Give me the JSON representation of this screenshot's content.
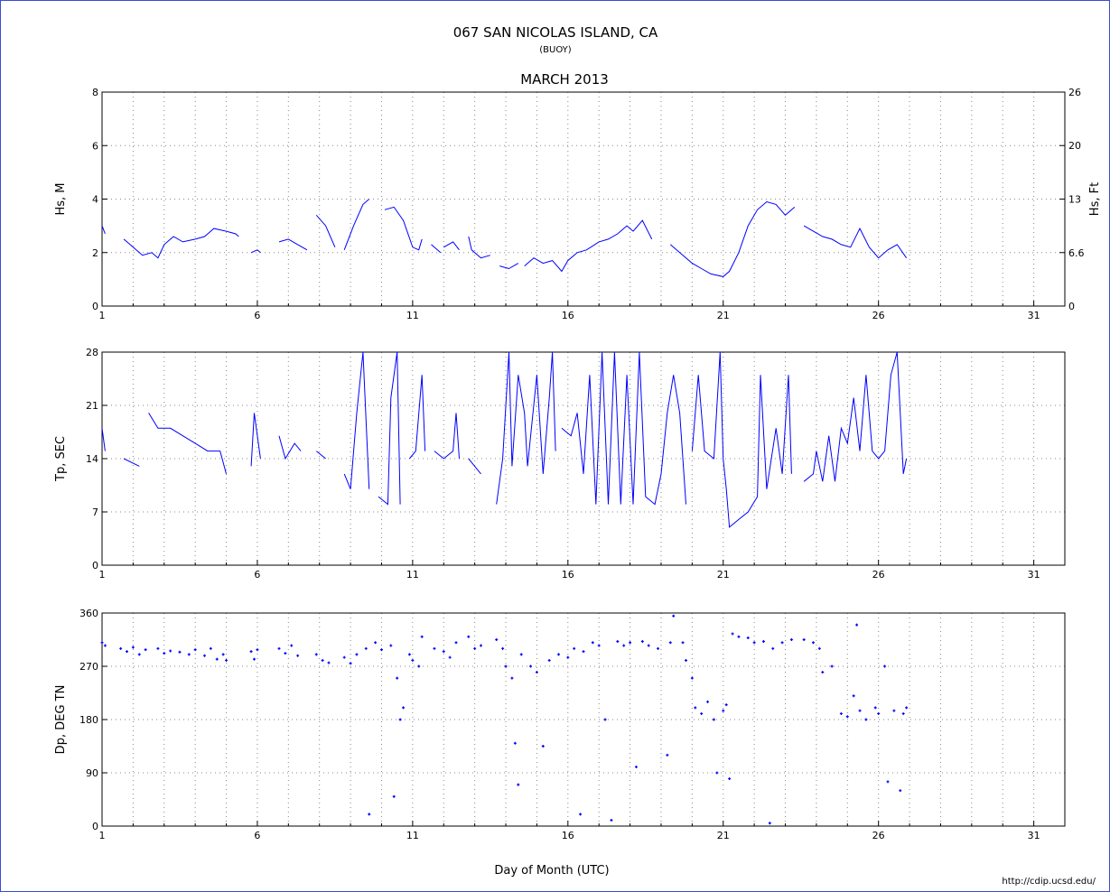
{
  "chart_data": [
    {
      "type": "line",
      "title": "067 SAN NICOLAS ISLAND, CA",
      "subtitle": "(BUOY)",
      "period": "MARCH 2013",
      "ylabel": "Hs, M",
      "y2label": "Hs, Ft",
      "color": "#0000ff",
      "grid": true,
      "xlim": [
        1,
        32
      ],
      "xticks": [
        1,
        6,
        11,
        16,
        21,
        26,
        31
      ],
      "xminorticks": [
        2,
        3,
        4,
        5,
        7,
        8,
        9,
        10,
        12,
        13,
        14,
        15,
        17,
        18,
        19,
        20,
        22,
        23,
        24,
        25,
        27,
        28,
        29,
        30
      ],
      "ylim": [
        0,
        8
      ],
      "yticks": [
        0,
        2,
        4,
        6,
        8
      ],
      "y2lim": [
        0,
        26.25
      ],
      "y2ticks": [
        0,
        {
          "value": 6.56,
          "label": "6.6"
        },
        {
          "value": 13.12,
          "label": "13"
        },
        {
          "value": 19.69,
          "label": "20"
        },
        {
          "value": 26.25,
          "label": "26"
        }
      ],
      "x": [
        1.0,
        1.1,
        1.4,
        1.7,
        2.0,
        2.3,
        2.6,
        2.8,
        3.0,
        3.3,
        3.6,
        4.0,
        4.3,
        4.6,
        5.0,
        5.3,
        5.4,
        5.6,
        5.8,
        6.0,
        6.1,
        6.4,
        6.7,
        7.0,
        7.3,
        7.6,
        7.75,
        7.9,
        8.2,
        8.5,
        8.65,
        8.8,
        9.1,
        9.4,
        9.6,
        9.85,
        10.1,
        10.4,
        10.7,
        11.0,
        11.2,
        11.3,
        11.45,
        11.6,
        11.9,
        11.95,
        12.0,
        12.3,
        12.5,
        12.65,
        12.8,
        12.9,
        13.2,
        13.5,
        13.65,
        13.8,
        14.1,
        14.4,
        14.5,
        14.6,
        14.9,
        15.2,
        15.5,
        15.8,
        16.0,
        16.3,
        16.6,
        17.0,
        17.3,
        17.6,
        17.9,
        18.1,
        18.4,
        18.7,
        19.0,
        19.3,
        19.6,
        20.0,
        20.3,
        20.6,
        21.0,
        21.2,
        21.5,
        21.8,
        22.1,
        22.4,
        22.7,
        23.0,
        23.3,
        23.45,
        23.6,
        23.9,
        24.2,
        24.5,
        24.8,
        25.1,
        25.4,
        25.7,
        26.0,
        26.3,
        26.6,
        26.9
      ],
      "values": [
        3.0,
        2.7,
        null,
        2.5,
        2.2,
        1.9,
        2.0,
        1.8,
        2.3,
        2.6,
        2.4,
        2.5,
        2.6,
        2.9,
        2.8,
        2.7,
        2.6,
        null,
        2.0,
        2.1,
        2.0,
        null,
        2.4,
        2.5,
        2.3,
        2.1,
        null,
        3.4,
        3.0,
        2.2,
        null,
        2.1,
        3.0,
        3.8,
        4.0,
        null,
        3.6,
        3.7,
        3.2,
        2.2,
        2.1,
        2.5,
        null,
        2.3,
        2.0,
        null,
        2.2,
        2.4,
        2.1,
        null,
        2.6,
        2.1,
        1.8,
        1.9,
        null,
        1.5,
        1.4,
        1.6,
        null,
        1.5,
        1.8,
        1.6,
        1.7,
        1.3,
        1.7,
        2.0,
        2.1,
        2.4,
        2.5,
        2.7,
        3.0,
        2.8,
        3.2,
        2.5,
        null,
        2.3,
        2.0,
        1.6,
        1.4,
        1.2,
        1.1,
        1.3,
        2.0,
        3.0,
        3.6,
        3.9,
        3.8,
        3.4,
        3.7,
        null,
        3.0,
        2.8,
        2.6,
        2.5,
        2.3,
        2.2,
        2.9,
        2.2,
        1.8,
        2.1,
        2.3,
        1.8
      ]
    },
    {
      "type": "line",
      "ylabel": "Tp, SEC",
      "color": "#0000ff",
      "grid": true,
      "xlim": [
        1,
        32
      ],
      "xticks": [
        1,
        6,
        11,
        16,
        21,
        26,
        31
      ],
      "xminorticks": [
        2,
        3,
        4,
        5,
        7,
        8,
        9,
        10,
        12,
        13,
        14,
        15,
        17,
        18,
        19,
        20,
        22,
        23,
        24,
        25,
        27,
        28,
        29,
        30
      ],
      "ylim": [
        0,
        28
      ],
      "yticks": [
        0,
        7,
        14,
        21,
        28
      ],
      "x": [
        1.0,
        1.1,
        1.4,
        1.7,
        2.2,
        2.35,
        2.5,
        2.8,
        3.2,
        3.6,
        4.0,
        4.4,
        4.8,
        5.0,
        5.4,
        5.8,
        5.9,
        6.1,
        6.4,
        6.7,
        6.9,
        7.2,
        7.4,
        7.65,
        7.9,
        8.2,
        8.5,
        8.8,
        9.0,
        9.2,
        9.4,
        9.6,
        9.75,
        9.9,
        10.2,
        10.3,
        10.5,
        10.6,
        10.75,
        10.9,
        11.1,
        11.3,
        11.4,
        11.55,
        11.7,
        12.0,
        12.3,
        12.4,
        12.5,
        12.65,
        12.8,
        13.0,
        13.2,
        13.45,
        13.7,
        13.9,
        14.1,
        14.2,
        14.4,
        14.6,
        14.7,
        15.0,
        15.2,
        15.4,
        15.5,
        15.6,
        15.7,
        15.8,
        16.1,
        16.3,
        16.5,
        16.7,
        16.9,
        17.1,
        17.3,
        17.5,
        17.7,
        17.9,
        18.1,
        18.3,
        18.5,
        18.8,
        19.0,
        19.2,
        19.4,
        19.6,
        19.8,
        19.9,
        20.0,
        20.2,
        20.4,
        20.7,
        20.9,
        21.0,
        21.1,
        21.2,
        21.5,
        21.8,
        22.1,
        22.2,
        22.4,
        22.7,
        22.9,
        23.1,
        23.2,
        23.4,
        23.6,
        23.9,
        24.0,
        24.2,
        24.4,
        24.6,
        24.8,
        25.0,
        25.2,
        25.4,
        25.6,
        25.8,
        26.0,
        26.2,
        26.4,
        26.6,
        26.8,
        26.9
      ],
      "values": [
        18,
        15,
        null,
        14,
        13,
        null,
        20,
        18,
        18,
        17,
        16,
        15,
        15,
        12,
        null,
        13,
        20,
        14,
        null,
        17,
        14,
        16,
        15,
        null,
        15,
        14,
        null,
        12,
        10,
        20,
        28,
        10,
        null,
        9,
        8,
        22,
        28,
        8,
        null,
        14,
        15,
        25,
        15,
        null,
        15,
        14,
        15,
        20,
        14,
        null,
        14,
        13,
        12,
        null,
        8,
        14,
        28,
        13,
        25,
        20,
        13,
        25,
        12,
        22,
        28,
        15,
        null,
        18,
        17,
        20,
        12,
        25,
        8,
        28,
        8,
        28,
        8,
        25,
        8,
        28,
        9,
        8,
        12,
        20,
        25,
        20,
        8,
        null,
        15,
        25,
        15,
        14,
        28,
        14,
        10,
        5,
        6,
        7,
        9,
        25,
        10,
        18,
        12,
        25,
        12,
        null,
        11,
        12,
        15,
        11,
        17,
        11,
        18,
        16,
        22,
        15,
        25,
        15,
        14,
        15,
        25,
        28,
        12,
        14
      ]
    },
    {
      "type": "scatter",
      "ylabel": "Dp, DEG TN",
      "xlabel": "Day of Month (UTC)",
      "color": "#0000ff",
      "grid": true,
      "xlim": [
        1,
        32
      ],
      "xticks": [
        1,
        6,
        11,
        16,
        21,
        26,
        31
      ],
      "xminorticks": [
        2,
        3,
        4,
        5,
        7,
        8,
        9,
        10,
        12,
        13,
        14,
        15,
        17,
        18,
        19,
        20,
        22,
        23,
        24,
        25,
        27,
        28,
        29,
        30
      ],
      "ylim": [
        0,
        360
      ],
      "yticks": [
        0,
        90,
        180,
        270,
        360
      ],
      "x": [
        1.0,
        1.1,
        1.6,
        1.8,
        2.0,
        2.2,
        2.4,
        2.8,
        3.0,
        3.2,
        3.5,
        3.8,
        4.0,
        4.3,
        4.5,
        4.7,
        4.9,
        5.0,
        5.8,
        5.9,
        6.0,
        6.7,
        6.9,
        7.1,
        7.3,
        7.9,
        8.1,
        8.3,
        8.8,
        9.0,
        9.2,
        9.5,
        9.6,
        9.8,
        10.0,
        10.3,
        10.4,
        10.5,
        10.6,
        10.7,
        10.9,
        11.0,
        11.2,
        11.3,
        11.7,
        12.0,
        12.2,
        12.4,
        12.8,
        13.0,
        13.2,
        13.7,
        13.9,
        14.0,
        14.2,
        14.3,
        14.4,
        14.5,
        14.8,
        15.0,
        15.2,
        15.4,
        15.7,
        16.0,
        16.2,
        16.4,
        16.5,
        16.8,
        17.0,
        17.2,
        17.4,
        17.6,
        17.8,
        18.0,
        18.2,
        18.4,
        18.6,
        18.9,
        19.2,
        19.3,
        19.4,
        19.7,
        19.8,
        20.0,
        20.1,
        20.3,
        20.5,
        20.7,
        20.8,
        21.0,
        21.1,
        21.2,
        21.3,
        21.5,
        21.8,
        22.0,
        22.3,
        22.5,
        22.6,
        22.9,
        23.2,
        23.6,
        23.9,
        24.1,
        24.2,
        24.5,
        24.8,
        25.0,
        25.2,
        25.3,
        25.4,
        25.6,
        25.9,
        26.0,
        26.2,
        26.3,
        26.5,
        26.7,
        26.8,
        26.9
      ],
      "values": [
        310,
        305,
        300,
        295,
        302,
        290,
        298,
        300,
        292,
        296,
        294,
        290,
        298,
        288,
        300,
        282,
        290,
        280,
        295,
        282,
        298,
        300,
        292,
        305,
        288,
        290,
        280,
        276,
        285,
        275,
        290,
        300,
        20,
        310,
        298,
        305,
        50,
        250,
        180,
        200,
        290,
        280,
        270,
        320,
        300,
        295,
        285,
        310,
        320,
        300,
        305,
        315,
        300,
        270,
        250,
        140,
        70,
        290,
        270,
        260,
        135,
        280,
        290,
        285,
        300,
        20,
        295,
        310,
        305,
        180,
        10,
        312,
        305,
        310,
        100,
        312,
        305,
        300,
        120,
        310,
        355,
        310,
        280,
        250,
        200,
        190,
        210,
        180,
        90,
        195,
        205,
        80,
        325,
        320,
        318,
        310,
        312,
        5,
        300,
        310,
        315,
        315,
        310,
        300,
        260,
        270,
        190,
        185,
        220,
        340,
        195,
        180,
        200,
        190,
        270,
        75,
        195,
        60,
        190,
        200
      ]
    }
  ],
  "footer": "http://cdip.ucsd.edu/"
}
